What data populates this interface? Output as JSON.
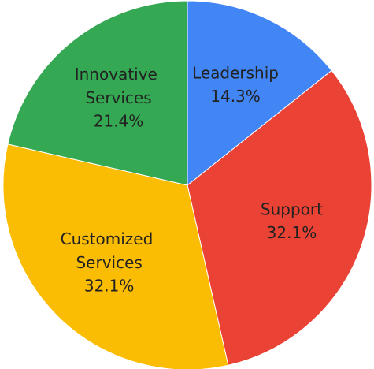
{
  "chart_data": {
    "type": "pie",
    "categories": [
      "Leadership",
      "Support",
      "Customized Services",
      "Innovative Services"
    ],
    "values": [
      14.3,
      32.1,
      32.1,
      21.4
    ],
    "value_labels": [
      "14.3%",
      "32.1%",
      "32.1%",
      "21.4%"
    ],
    "colors": [
      "#4285f4",
      "#ea4335",
      "#fbbc04",
      "#34a853"
    ]
  }
}
